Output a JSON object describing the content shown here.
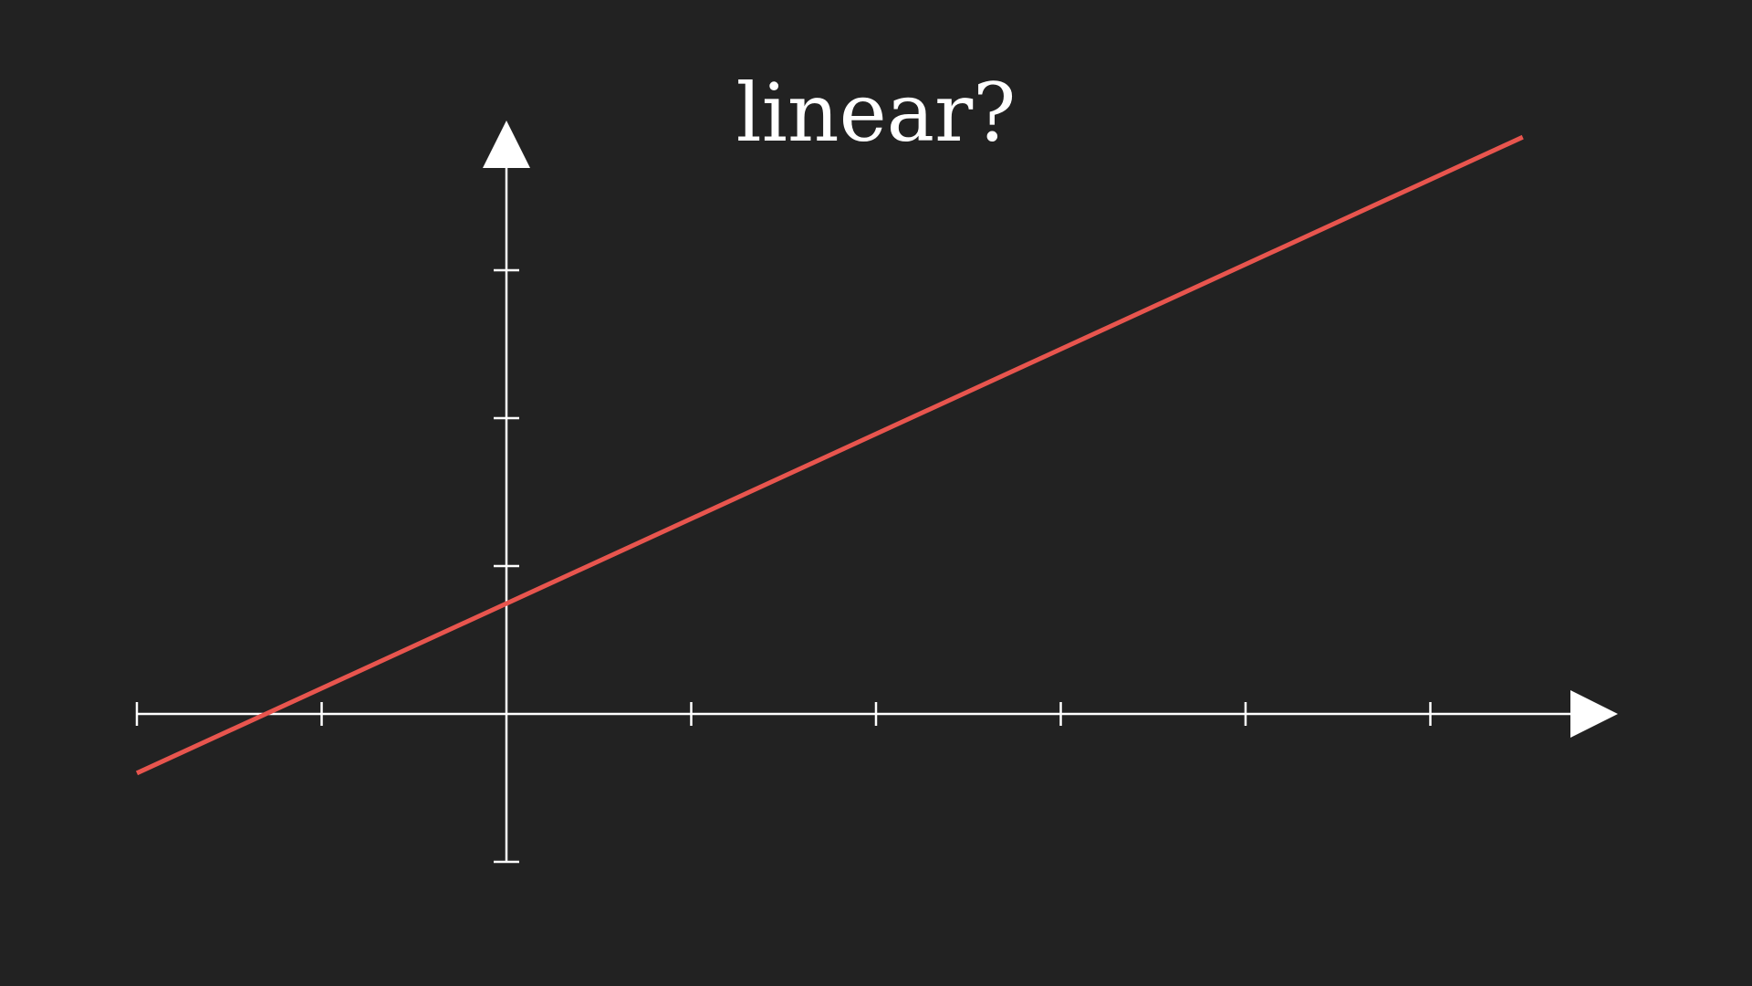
{
  "chart_data": {
    "type": "line",
    "title": "linear?",
    "xlim": [
      -2,
      6
    ],
    "ylim": [
      -1,
      3
    ],
    "x_ticks": [
      -2,
      -1,
      0,
      1,
      2,
      3,
      4,
      5
    ],
    "y_ticks": [
      -1,
      1,
      2,
      3
    ],
    "series": [
      {
        "x": [
          -2,
          5.5
        ],
        "y": [
          -0.4,
          3.9
        ]
      }
    ],
    "xlabel": "",
    "ylabel": "",
    "grid": false
  },
  "colors": {
    "background": "#222222",
    "axes": "#ffffff",
    "line": "#e8554e"
  }
}
